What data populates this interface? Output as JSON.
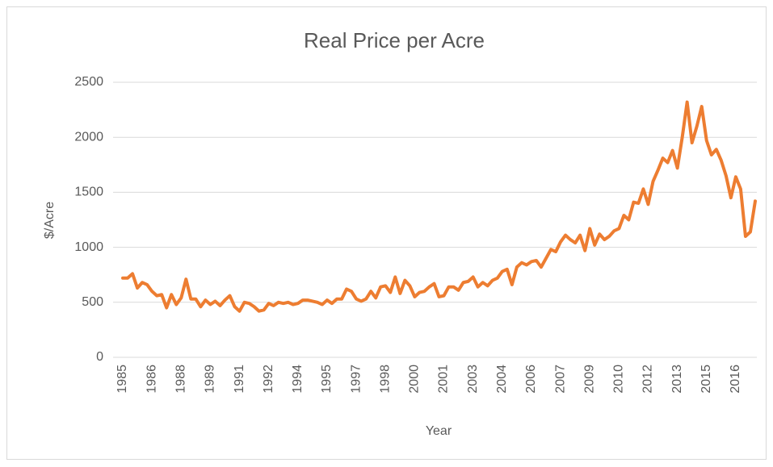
{
  "chart_data": {
    "type": "line",
    "title": "Real Price per Acre",
    "x_label": "Year",
    "y_label": "$/Acre",
    "categories": [
      "1985",
      null,
      null,
      null,
      null,
      null,
      "1986",
      null,
      null,
      null,
      null,
      null,
      "1988",
      null,
      null,
      null,
      null,
      null,
      "1989",
      null,
      null,
      null,
      null,
      null,
      "1991",
      null,
      null,
      null,
      null,
      null,
      "1992",
      null,
      null,
      null,
      null,
      null,
      "1994",
      null,
      null,
      null,
      null,
      null,
      "1995",
      null,
      null,
      null,
      null,
      null,
      "1997",
      null,
      null,
      null,
      null,
      null,
      "1998",
      null,
      null,
      null,
      null,
      null,
      "2000",
      null,
      null,
      null,
      null,
      null,
      "2001",
      null,
      null,
      null,
      null,
      null,
      "2003",
      null,
      null,
      null,
      null,
      null,
      "2004",
      null,
      null,
      null,
      null,
      null,
      "2006",
      null,
      null,
      null,
      null,
      null,
      "2007",
      null,
      null,
      null,
      null,
      null,
      "2009",
      null,
      null,
      null,
      null,
      null,
      "2010",
      null,
      null,
      null,
      null,
      null,
      "2012",
      null,
      null,
      null,
      null,
      null,
      "2013",
      null,
      null,
      null,
      null,
      null,
      "2015",
      null,
      null,
      null,
      null,
      null,
      "2016",
      null,
      null,
      null,
      null
    ],
    "series": [
      {
        "name": "Real Price per Acre",
        "color": "#ed7d31",
        "values": [
          720,
          720,
          760,
          630,
          680,
          660,
          600,
          560,
          570,
          450,
          570,
          480,
          540,
          710,
          530,
          530,
          460,
          520,
          480,
          510,
          470,
          520,
          560,
          460,
          420,
          500,
          490,
          460,
          420,
          430,
          490,
          470,
          500,
          490,
          500,
          480,
          490,
          520,
          520,
          510,
          500,
          480,
          520,
          490,
          530,
          530,
          620,
          600,
          530,
          510,
          530,
          600,
          540,
          640,
          650,
          590,
          730,
          580,
          700,
          650,
          550,
          590,
          600,
          640,
          670,
          550,
          560,
          640,
          640,
          610,
          680,
          690,
          730,
          640,
          680,
          650,
          700,
          720,
          780,
          800,
          660,
          820,
          860,
          840,
          870,
          880,
          820,
          900,
          980,
          960,
          1050,
          1110,
          1070,
          1040,
          1110,
          970,
          1170,
          1020,
          1120,
          1070,
          1100,
          1150,
          1170,
          1290,
          1250,
          1410,
          1400,
          1530,
          1390,
          1600,
          1700,
          1810,
          1770,
          1880,
          1720,
          2000,
          2320,
          1950,
          2100,
          2280,
          1970,
          1840,
          1890,
          1790,
          1650,
          1450,
          1640,
          1530,
          1100,
          1140,
          1420
        ]
      }
    ],
    "ylim": [
      0,
      2500
    ],
    "yticks": [
      0,
      500,
      1000,
      1500,
      2000,
      2500
    ],
    "grid": true
  }
}
